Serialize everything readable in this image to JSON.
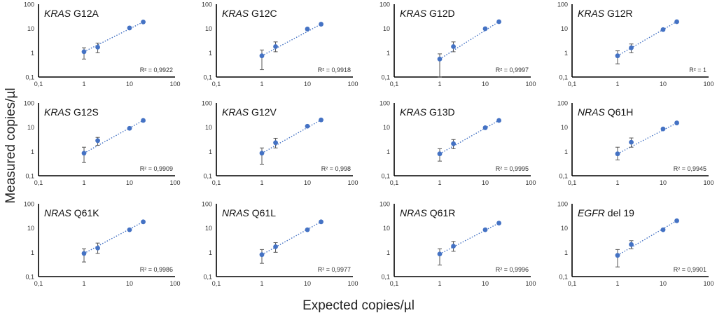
{
  "figure": {
    "ylabel": "Measured copies/µl",
    "xlabel": "Expected copies/µl"
  },
  "chart_data": [
    {
      "type": "scatter",
      "title_gene": "KRAS",
      "title_mut": "G12A",
      "r2_label": "R² = 0,9922",
      "log_x": true,
      "log_y": true,
      "xlim": [
        0.1,
        100
      ],
      "ylim": [
        0.1,
        100
      ],
      "x_ticks": [
        "0,1",
        "1",
        "10",
        "100"
      ],
      "y_ticks": [
        "0,1",
        "1",
        "10",
        "100"
      ],
      "trendline": "dotted",
      "x": [
        1,
        2,
        10,
        20
      ],
      "y": [
        1.1,
        1.7,
        10.5,
        18.5
      ],
      "err_low": [
        0.55,
        1.0,
        9.8,
        17.5
      ],
      "err_high": [
        1.6,
        2.5,
        11.2,
        19.5
      ]
    },
    {
      "type": "scatter",
      "title_gene": "KRAS",
      "title_mut": "G12C",
      "r2_label": "R² = 0,9918",
      "log_x": true,
      "log_y": true,
      "xlim": [
        0.1,
        100
      ],
      "ylim": [
        0.1,
        100
      ],
      "x_ticks": [
        "0,1",
        "1",
        "10",
        "100"
      ],
      "y_ticks": [
        "0,1",
        "1",
        "10",
        "100"
      ],
      "trendline": "dotted",
      "x": [
        1,
        2,
        10,
        20
      ],
      "y": [
        0.75,
        1.8,
        9.5,
        15
      ],
      "err_low": [
        0.2,
        1.1,
        8.8,
        14
      ],
      "err_high": [
        1.3,
        2.8,
        10.3,
        16
      ]
    },
    {
      "type": "scatter",
      "title_gene": "KRAS",
      "title_mut": "G12D",
      "r2_label": "R² = 0,9997",
      "log_x": true,
      "log_y": true,
      "xlim": [
        0.1,
        100
      ],
      "ylim": [
        0.1,
        100
      ],
      "x_ticks": [
        "0,1",
        "1",
        "10",
        "100"
      ],
      "y_ticks": [
        "0,1",
        "1",
        "10",
        "100"
      ],
      "trendline": "dotted",
      "x": [
        1,
        2,
        10,
        20
      ],
      "y": [
        0.55,
        1.8,
        9.8,
        19
      ],
      "err_low": [
        0.1,
        1.1,
        9.1,
        18
      ],
      "err_high": [
        0.9,
        2.8,
        10.5,
        20
      ]
    },
    {
      "type": "scatter",
      "title_gene": "KRAS",
      "title_mut": "G12R",
      "r2_label": "R² = 1",
      "log_x": true,
      "log_y": true,
      "xlim": [
        0.1,
        100
      ],
      "ylim": [
        0.1,
        100
      ],
      "x_ticks": [
        "0,1",
        "1",
        "10",
        "100"
      ],
      "y_ticks": [
        "0,1",
        "1",
        "10",
        "100"
      ],
      "trendline": "dotted",
      "x": [
        1,
        2,
        10,
        20
      ],
      "y": [
        0.75,
        1.6,
        9,
        19
      ],
      "err_low": [
        0.35,
        1.0,
        8.4,
        18
      ],
      "err_high": [
        1.2,
        2.3,
        9.7,
        20
      ]
    },
    {
      "type": "scatter",
      "title_gene": "KRAS",
      "title_mut": "G12S",
      "r2_label": "R² = 0,9909",
      "log_x": true,
      "log_y": true,
      "xlim": [
        0.1,
        100
      ],
      "ylim": [
        0.1,
        100
      ],
      "x_ticks": [
        "0,1",
        "1",
        "10",
        "100"
      ],
      "y_ticks": [
        "0,1",
        "1",
        "10",
        "100"
      ],
      "trendline": "dotted",
      "x": [
        1,
        2,
        10,
        20
      ],
      "y": [
        0.85,
        2.8,
        9,
        19
      ],
      "err_low": [
        0.35,
        1.8,
        8.3,
        18
      ],
      "err_high": [
        1.5,
        3.8,
        9.8,
        20
      ]
    },
    {
      "type": "scatter",
      "title_gene": "KRAS",
      "title_mut": "G12V",
      "r2_label": "R² = 0,998",
      "log_x": true,
      "log_y": true,
      "xlim": [
        0.1,
        100
      ],
      "ylim": [
        0.1,
        100
      ],
      "x_ticks": [
        "0,1",
        "1",
        "10",
        "100"
      ],
      "y_ticks": [
        "0,1",
        "1",
        "10",
        "100"
      ],
      "trendline": "dotted",
      "x": [
        1,
        2,
        10,
        20
      ],
      "y": [
        0.85,
        2.3,
        11,
        20
      ],
      "err_low": [
        0.3,
        1.4,
        10.2,
        19
      ],
      "err_high": [
        1.4,
        3.5,
        12,
        21
      ]
    },
    {
      "type": "scatter",
      "title_gene": "KRAS",
      "title_mut": "G13D",
      "r2_label": "R² = 0,9995",
      "log_x": true,
      "log_y": true,
      "xlim": [
        0.1,
        100
      ],
      "ylim": [
        0.1,
        100
      ],
      "x_ticks": [
        "0,1",
        "1",
        "10",
        "100"
      ],
      "y_ticks": [
        "0,1",
        "1",
        "10",
        "100"
      ],
      "trendline": "dotted",
      "x": [
        1,
        2,
        10,
        20
      ],
      "y": [
        0.8,
        2.1,
        9.5,
        19
      ],
      "err_low": [
        0.4,
        1.3,
        8.8,
        18
      ],
      "err_high": [
        1.3,
        3.1,
        10.2,
        20
      ]
    },
    {
      "type": "scatter",
      "title_gene": "NRAS",
      "title_mut": "Q61H",
      "r2_label": "R² = 0,9945",
      "log_x": true,
      "log_y": true,
      "xlim": [
        0.1,
        100
      ],
      "ylim": [
        0.1,
        100
      ],
      "x_ticks": [
        "0,1",
        "1",
        "10",
        "100"
      ],
      "y_ticks": [
        "0,1",
        "1",
        "10",
        "100"
      ],
      "trendline": "dotted",
      "x": [
        1,
        2,
        10,
        20
      ],
      "y": [
        0.8,
        2.4,
        8.5,
        15
      ],
      "err_low": [
        0.45,
        1.5,
        7.9,
        14
      ],
      "err_high": [
        1.5,
        3.6,
        9.2,
        16
      ]
    },
    {
      "type": "scatter",
      "title_gene": "NRAS",
      "title_mut": "Q61K",
      "r2_label": "R² = 0,9986",
      "log_x": true,
      "log_y": true,
      "xlim": [
        0.1,
        100
      ],
      "ylim": [
        0.1,
        100
      ],
      "x_ticks": [
        "0,1",
        "1",
        "10",
        "100"
      ],
      "y_ticks": [
        "0,1",
        "1",
        "10",
        "100"
      ],
      "trendline": "dotted",
      "x": [
        1,
        2,
        10,
        20
      ],
      "y": [
        0.9,
        1.5,
        8.5,
        18
      ],
      "err_low": [
        0.4,
        0.9,
        7.9,
        17
      ],
      "err_high": [
        1.4,
        2.4,
        9.2,
        19
      ]
    },
    {
      "type": "scatter",
      "title_gene": "NRAS",
      "title_mut": "Q61L",
      "r2_label": "R² = 0,9977",
      "log_x": true,
      "log_y": true,
      "xlim": [
        0.1,
        100
      ],
      "ylim": [
        0.1,
        100
      ],
      "x_ticks": [
        "0,1",
        "1",
        "10",
        "100"
      ],
      "y_ticks": [
        "0,1",
        "1",
        "10",
        "100"
      ],
      "trendline": "dotted",
      "x": [
        1,
        2,
        10,
        20
      ],
      "y": [
        0.8,
        1.7,
        8.5,
        18
      ],
      "err_low": [
        0.35,
        1.0,
        7.9,
        17
      ],
      "err_high": [
        1.3,
        2.5,
        9.2,
        19
      ]
    },
    {
      "type": "scatter",
      "title_gene": "NRAS",
      "title_mut": "Q61R",
      "r2_label": "R² = 0,9996",
      "log_x": true,
      "log_y": true,
      "xlim": [
        0.1,
        100
      ],
      "ylim": [
        0.1,
        100
      ],
      "x_ticks": [
        "0,1",
        "1",
        "10",
        "100"
      ],
      "y_ticks": [
        "0,1",
        "1",
        "10",
        "100"
      ],
      "trendline": "dotted",
      "x": [
        1,
        2,
        10,
        20
      ],
      "y": [
        0.85,
        1.8,
        8.5,
        16
      ],
      "err_low": [
        0.3,
        1.1,
        7.9,
        15
      ],
      "err_high": [
        1.4,
        2.8,
        9.2,
        17
      ]
    },
    {
      "type": "scatter",
      "title_gene": "EGFR",
      "title_mut": "del 19",
      "r2_label": "R² = 0,9901",
      "log_x": true,
      "log_y": true,
      "xlim": [
        0.1,
        100
      ],
      "ylim": [
        0.1,
        100
      ],
      "x_ticks": [
        "0,1",
        "1",
        "10",
        "100"
      ],
      "y_ticks": [
        "0,1",
        "1",
        "10",
        "100"
      ],
      "trendline": "dotted",
      "x": [
        1,
        2,
        10,
        20
      ],
      "y": [
        0.75,
        2.1,
        8.5,
        20
      ],
      "err_low": [
        0.25,
        1.4,
        7.9,
        19
      ],
      "err_high": [
        1.3,
        3.0,
        9.2,
        21
      ]
    }
  ]
}
